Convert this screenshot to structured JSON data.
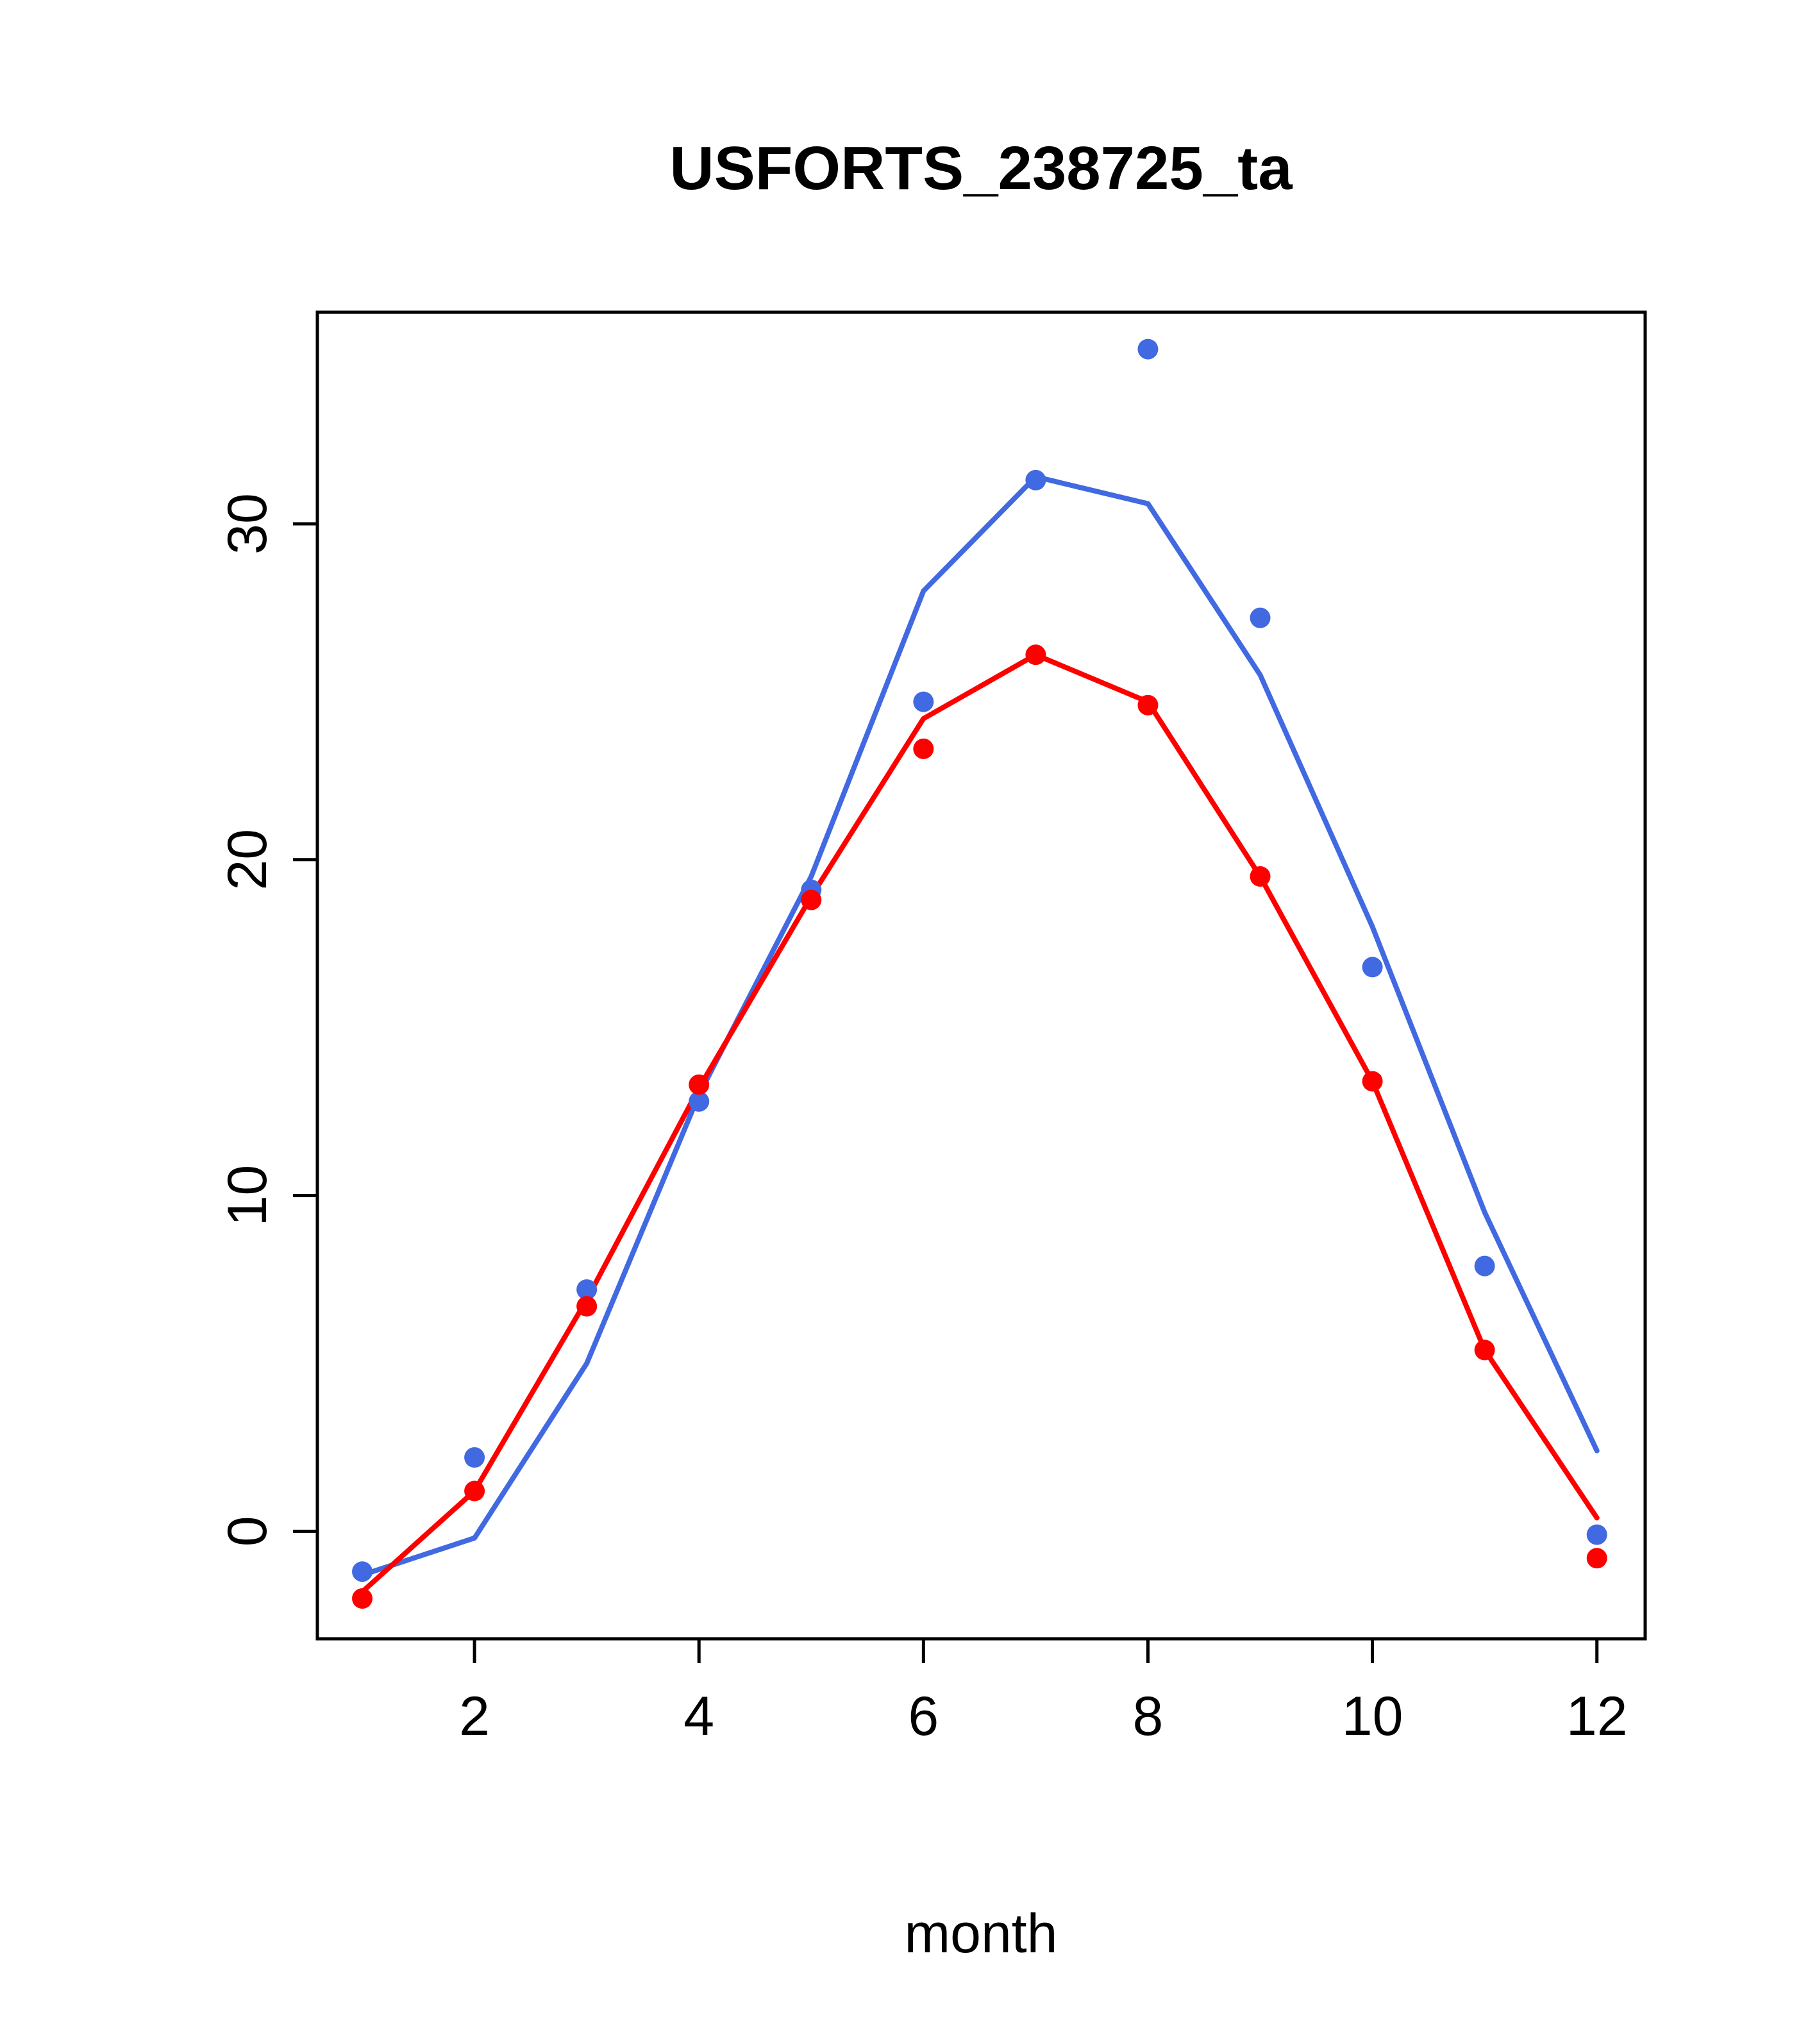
{
  "chart_data": {
    "type": "line",
    "title": "USFORTS_238725_ta",
    "xlabel": "month",
    "ylabel": "",
    "x": [
      1,
      2,
      3,
      4,
      5,
      6,
      7,
      8,
      9,
      10,
      11,
      12
    ],
    "xticks": [
      2,
      4,
      6,
      8,
      10,
      12
    ],
    "yticks": [
      0,
      10,
      20,
      30
    ],
    "xlim": [
      0.6,
      12.43
    ],
    "ylim": [
      -3.2,
      36.3
    ],
    "grid": false,
    "legend": "none",
    "accent_colors": {
      "blue": "#4169E1",
      "red": "#FF0000"
    },
    "series": [
      {
        "name": "model-blue-line",
        "mode": "line",
        "color": "#4169E1",
        "values": [
          -1.3,
          -0.2,
          5.0,
          13.0,
          19.5,
          28.0,
          31.4,
          30.6,
          25.5,
          18.0,
          9.5,
          2.4
        ]
      },
      {
        "name": "model-red-line",
        "mode": "line",
        "color": "#FF0000",
        "values": [
          -1.8,
          1.2,
          6.9,
          13.2,
          18.9,
          24.2,
          26.1,
          24.7,
          19.5,
          13.4,
          5.4,
          0.4
        ]
      },
      {
        "name": "obs-blue-points",
        "mode": "points",
        "color": "#4169E1",
        "values": [
          -1.2,
          2.2,
          7.2,
          12.8,
          19.1,
          24.7,
          31.3,
          35.2,
          27.2,
          16.8,
          7.9,
          -0.1
        ]
      },
      {
        "name": "obs-red-points",
        "mode": "points",
        "color": "#FF0000",
        "values": [
          -2.0,
          1.2,
          6.7,
          13.3,
          18.8,
          23.3,
          26.1,
          24.6,
          19.5,
          13.4,
          5.4,
          -0.8
        ]
      }
    ]
  }
}
